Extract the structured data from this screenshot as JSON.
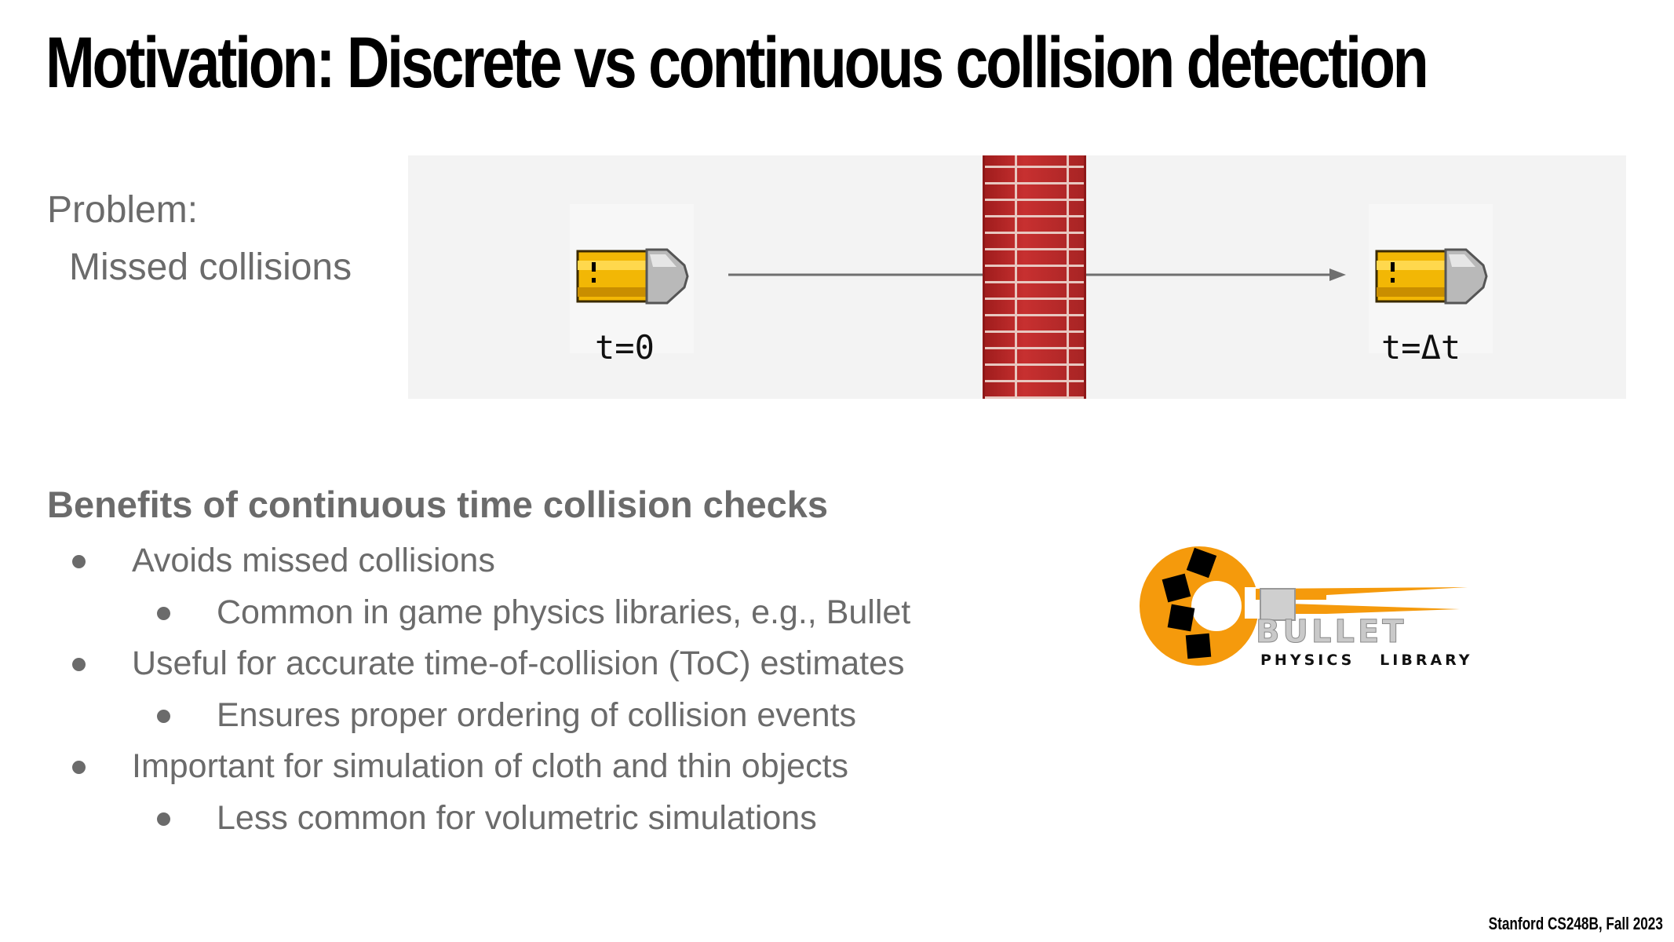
{
  "slide": {
    "title": "Motivation:  Discrete vs continuous collision detection",
    "problem_label": "Problem:",
    "problem_detail": "Missed collisions",
    "diagram": {
      "start_label": "t=0",
      "end_label": "t=Δt",
      "wall_color": "#b32626",
      "bullet_color": "#f2b705"
    },
    "benefits": {
      "heading": "Benefits of continuous time collision checks",
      "items": [
        {
          "level": 1,
          "text": "Avoids missed collisions"
        },
        {
          "level": 2,
          "text": "Common in game physics libraries, e.g., Bullet"
        },
        {
          "level": 1,
          "text": "Useful for accurate time-of-collision (ToC) estimates"
        },
        {
          "level": 2,
          "text": "Ensures proper ordering of collision events"
        },
        {
          "level": 1,
          "text": "Important for simulation of cloth and thin objects"
        },
        {
          "level": 2,
          "text": "Less common for volumetric simulations"
        }
      ]
    },
    "logo": {
      "word": "BULLET",
      "tagline": "PHYSICS   LIBRARY",
      "accent": "#f59a0c"
    },
    "footer": "Stanford CS248B, Fall 2023"
  }
}
